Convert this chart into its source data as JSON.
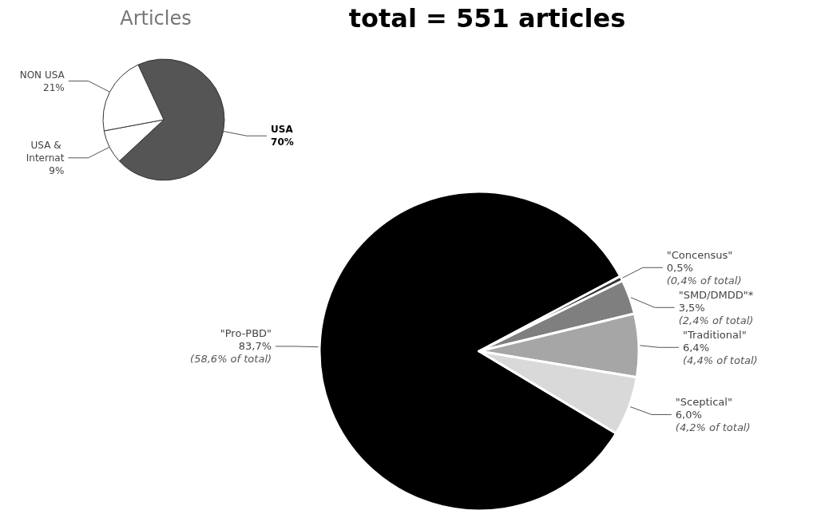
{
  "chart_data": [
    {
      "type": "pie",
      "title": "Articles",
      "categories": [
        "USA",
        "USA & Internat",
        "NON USA"
      ],
      "values": [
        70,
        9,
        21
      ],
      "colors": [
        "#555555",
        "#ffffff",
        "#ffffff"
      ],
      "value_labels": [
        "70%",
        "9%",
        "21%"
      ]
    },
    {
      "type": "pie",
      "title": "total = 551 articles",
      "categories": [
        "\"Pro-PBD\"",
        "\"Concensus\"",
        "\"SMD/DMDD\"*",
        "\"Traditional\"",
        "\"Sceptical\""
      ],
      "values": [
        83.7,
        0.5,
        3.5,
        6.4,
        6.0
      ],
      "colors": [
        "#000000",
        "#333333",
        "#7f7f7f",
        "#a6a6a6",
        "#d9d9d9"
      ],
      "value_labels": [
        "83,7%\n(58,6% of total)",
        "0,5%\n(0,4% of total)",
        "3,5%\n(2,4% of total)",
        "6,4%\n(4,4% of total)",
        "6,0%\n(4,2% of total)"
      ]
    }
  ]
}
